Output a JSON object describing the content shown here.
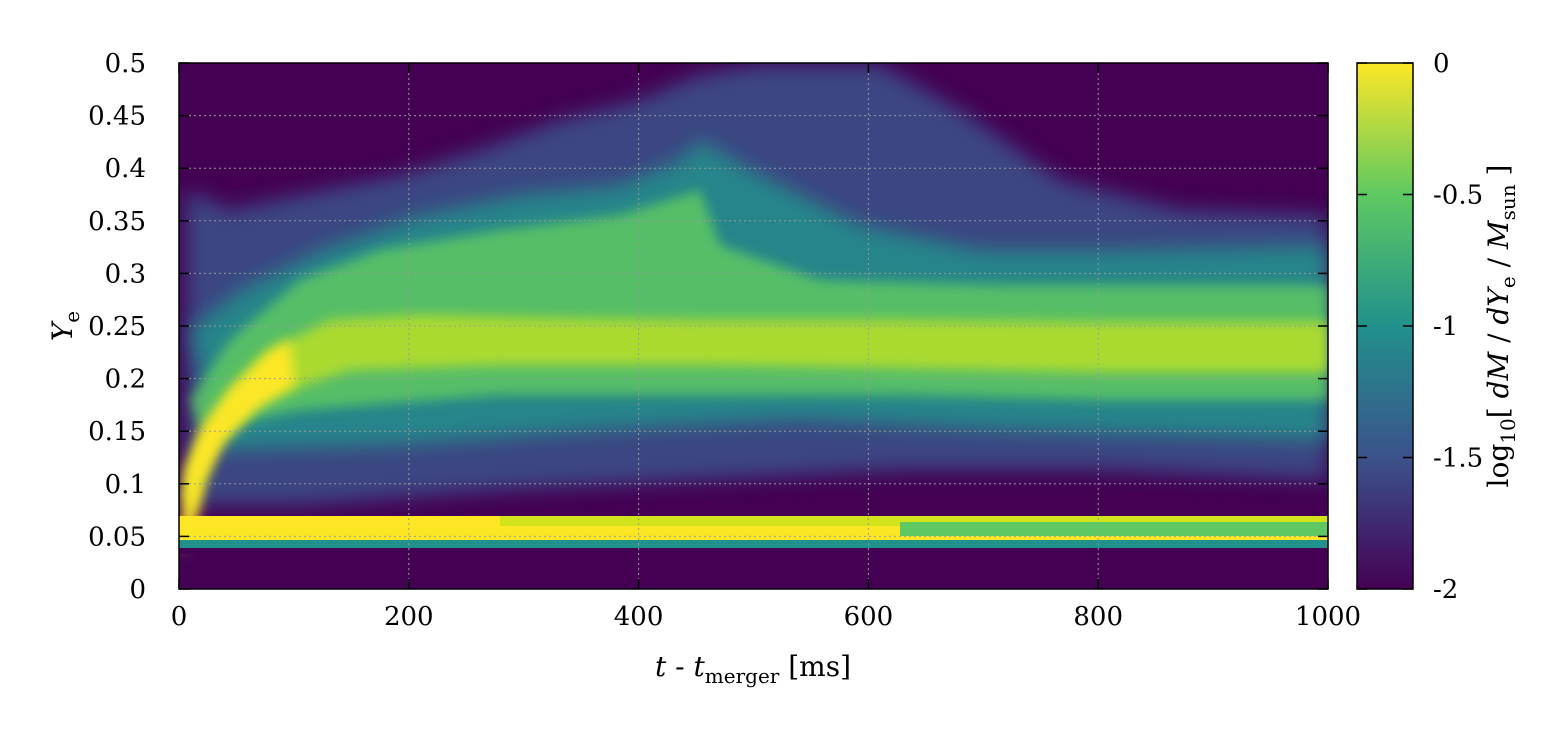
{
  "chart_data": {
    "type": "heatmap",
    "xlabel": {
      "italic": "t",
      "mid": " - ",
      "italic2": "t",
      "sub": "merger",
      "unit": " [ms]"
    },
    "ylabel": {
      "italic": "Y",
      "sub": "e"
    },
    "colorbar_label": {
      "pre": "log",
      "pre_sub": "10",
      "body": "[ ",
      "i1": "dM",
      "s1": " / ",
      "i2": "dY",
      "sub2": "e",
      "s2": " / ",
      "i3": "M",
      "sub3": "sun",
      "end": " ]"
    },
    "xlim": [
      0,
      1000
    ],
    "ylim": [
      0,
      0.5
    ],
    "xticks": [
      "0",
      "200",
      "400",
      "600",
      "800",
      "1000"
    ],
    "yticks": [
      "0",
      "0.05",
      "0.1",
      "0.15",
      "0.2",
      "0.25",
      "0.3",
      "0.35",
      "0.4",
      "0.45",
      "0.5"
    ],
    "colorbar_ticks": [
      "0",
      "-0.5",
      "-1",
      "-1.5",
      "-2"
    ],
    "colorbar_range": [
      -2,
      0
    ],
    "colormap": [
      "#440154",
      "#3b528b",
      "#21918c",
      "#5ec962",
      "#fde725"
    ],
    "grid": true,
    "features": {
      "main_ridge_ye": [
        [
          0,
          0.08
        ],
        [
          50,
          0.16
        ],
        [
          100,
          0.21
        ],
        [
          200,
          0.235
        ],
        [
          400,
          0.235
        ],
        [
          600,
          0.235
        ],
        [
          800,
          0.235
        ],
        [
          1000,
          0.235
        ]
      ],
      "low_ye_band": [
        0.04,
        0.07
      ],
      "upper_envelope_ye": [
        [
          5,
          0.37
        ],
        [
          200,
          0.38
        ],
        [
          400,
          0.44
        ],
        [
          550,
          0.5
        ],
        [
          650,
          0.49
        ],
        [
          800,
          0.37
        ],
        [
          1000,
          0.355
        ]
      ],
      "lower_envelope_ye": [
        [
          0,
          0.035
        ],
        [
          1000,
          0.035
        ]
      ]
    }
  }
}
